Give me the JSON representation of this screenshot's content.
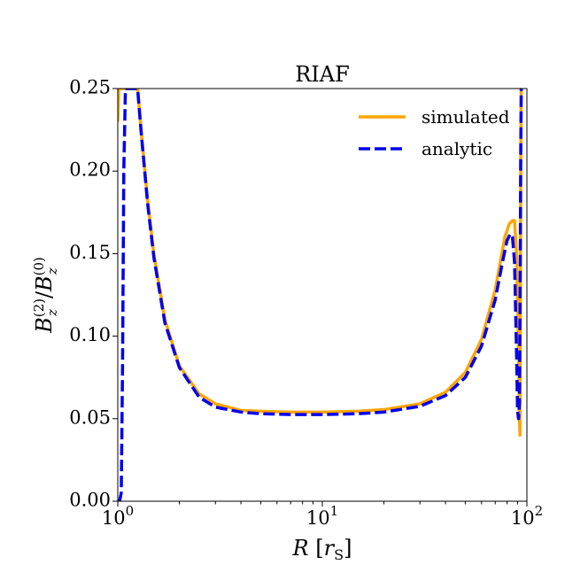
{
  "chart_data": {
    "type": "line",
    "title": "RIAF",
    "xlabel": {
      "main": "R",
      "bracket_open": "[",
      "unit": "r",
      "unit_sub": "S",
      "bracket_close": "]"
    },
    "ylabel": {
      "num": "B",
      "num_sub": "z",
      "num_sup": "(2)",
      "slash": "/",
      "den": "B",
      "den_sub": "z",
      "den_sup": "(0)"
    },
    "xscale": "log",
    "xlim": [
      1,
      100
    ],
    "ylim": [
      0,
      0.25
    ],
    "x_ticks": [
      {
        "value": 1,
        "base": "10",
        "exp": "0"
      },
      {
        "value": 10,
        "base": "10",
        "exp": "1"
      },
      {
        "value": 100,
        "base": "10",
        "exp": "2"
      }
    ],
    "y_ticks": [
      {
        "value": 0.0,
        "label": "0.00"
      },
      {
        "value": 0.05,
        "label": "0.05"
      },
      {
        "value": 0.1,
        "label": "0.10"
      },
      {
        "value": 0.15,
        "label": "0.15"
      },
      {
        "value": 0.2,
        "label": "0.20"
      },
      {
        "value": 0.25,
        "label": "0.25"
      }
    ],
    "legend_position": "top-right",
    "series": [
      {
        "name": "simulated",
        "color": "#FFA500",
        "dash": "solid",
        "x": [
          1.0,
          1.01,
          1.02,
          1.03,
          1.25,
          1.3,
          1.4,
          1.5,
          1.7,
          2.0,
          2.5,
          3.0,
          4.0,
          5.0,
          7.0,
          10.0,
          15.0,
          20.0,
          30.0,
          40.0,
          50.0,
          60.0,
          70.0,
          78.0,
          82.0,
          85.0,
          87.0,
          89.0,
          91.0,
          92.0,
          92.5,
          93.0,
          93.4,
          93.8
        ],
        "y": [
          0.23,
          0.25,
          0.25,
          0.25,
          0.25,
          0.225,
          0.182,
          0.15,
          0.11,
          0.082,
          0.065,
          0.059,
          0.055,
          0.0545,
          0.054,
          0.054,
          0.0545,
          0.0555,
          0.059,
          0.066,
          0.078,
          0.098,
          0.128,
          0.16,
          0.168,
          0.17,
          0.17,
          0.15,
          0.09,
          0.05,
          0.04,
          0.12,
          0.22,
          0.25
        ]
      },
      {
        "name": "analytic",
        "color": "#0000EE",
        "dash": "dashed",
        "x": [
          1.0,
          1.02,
          1.04,
          1.055,
          1.07,
          1.09,
          1.1,
          1.15,
          1.25,
          1.3,
          1.4,
          1.5,
          1.7,
          2.0,
          2.5,
          3.0,
          4.0,
          5.0,
          7.0,
          10.0,
          15.0,
          20.0,
          30.0,
          40.0,
          50.0,
          60.0,
          70.0,
          76.0,
          80.0,
          83.0,
          85.0,
          87.0,
          89.0,
          90.0,
          91.0,
          92.0,
          92.6,
          93.2,
          93.8
        ],
        "y": [
          0.0,
          0.0,
          0.005,
          0.08,
          0.2,
          0.25,
          0.25,
          0.25,
          0.25,
          0.224,
          0.18,
          0.148,
          0.108,
          0.081,
          0.063,
          0.057,
          0.054,
          0.053,
          0.0525,
          0.0525,
          0.053,
          0.054,
          0.0575,
          0.064,
          0.075,
          0.094,
          0.122,
          0.145,
          0.158,
          0.162,
          0.16,
          0.145,
          0.09,
          0.055,
          0.05,
          0.06,
          0.12,
          0.2,
          0.25
        ]
      }
    ]
  }
}
